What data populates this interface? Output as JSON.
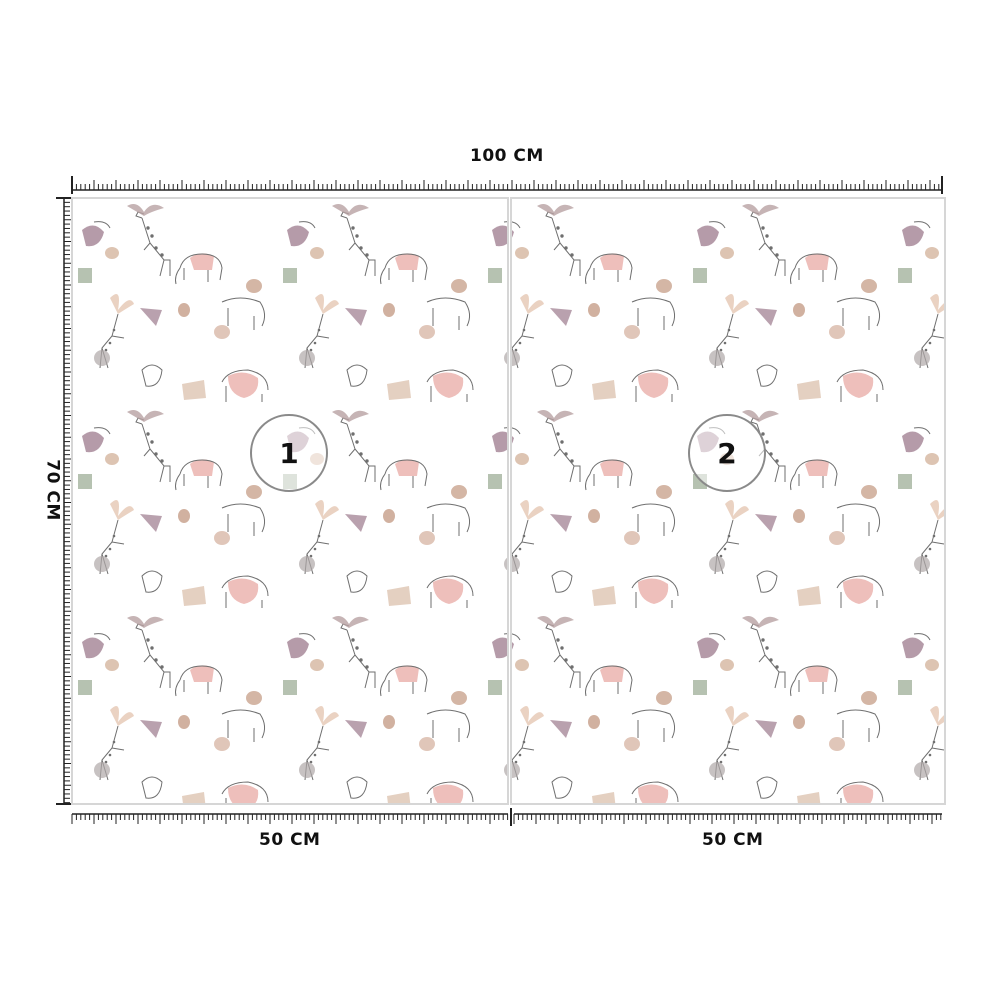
{
  "dimensions": {
    "total_width": "100 CM",
    "height": "70 CM",
    "panel_1_width": "50 CM",
    "panel_2_width": "50 CM"
  },
  "panels": [
    {
      "number": "1"
    },
    {
      "number": "2"
    }
  ],
  "pattern": {
    "motifs": [
      "giraffe",
      "elephant",
      "toucan",
      "palm-leaf",
      "blob",
      "square-patch"
    ],
    "colors": {
      "mauve": "#a88a9a",
      "pink": "#e8a9a4",
      "sage": "#a9b7a3",
      "beige": "#ddc4b2",
      "tan": "#c9a48f",
      "line": "#6f6f6f"
    }
  }
}
